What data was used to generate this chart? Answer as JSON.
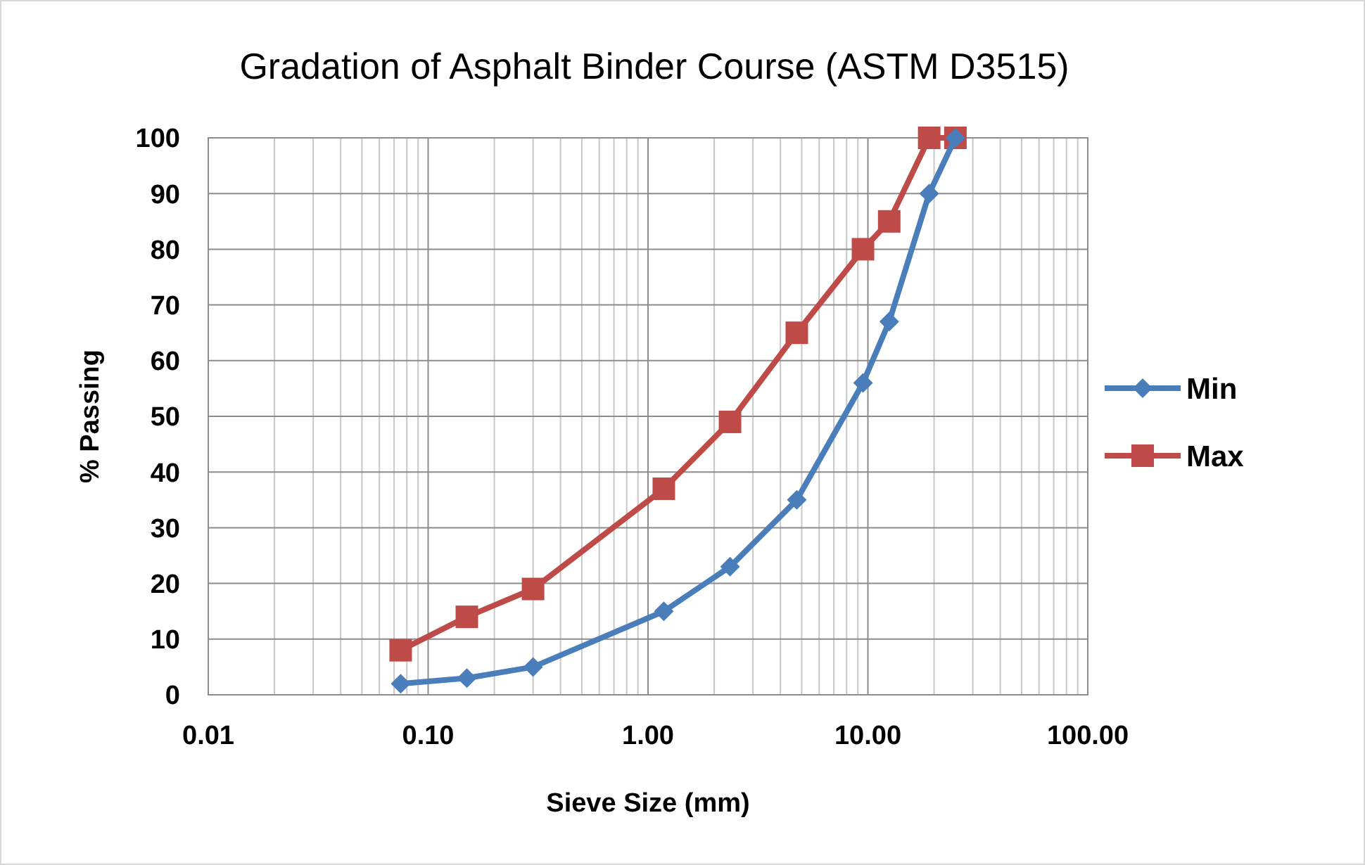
{
  "chart_data": {
    "type": "line",
    "title": "Gradation of Asphalt Binder Course (ASTM D3515)",
    "xlabel": "Sieve Size (mm)",
    "ylabel": "% Passing",
    "x": [
      0.075,
      0.15,
      0.3,
      1.18,
      2.36,
      4.75,
      9.5,
      12.5,
      19,
      25
    ],
    "series": [
      {
        "name": "Min",
        "color": "#4a7ebb",
        "marker": "diamond",
        "values": [
          2,
          3,
          5,
          15,
          23,
          35,
          56,
          67,
          90,
          100
        ]
      },
      {
        "name": "Max",
        "color": "#be4b48",
        "marker": "square",
        "values": [
          8,
          14,
          19,
          37,
          49,
          65,
          80,
          85,
          100,
          100
        ]
      }
    ],
    "log": "x",
    "xlim": [
      0.01,
      100
    ],
    "xticks": [
      {
        "value": 0.01,
        "label": "0.01"
      },
      {
        "value": 0.1,
        "label": "0.10"
      },
      {
        "value": 1,
        "label": "1.00"
      },
      {
        "value": 10,
        "label": "10.00"
      },
      {
        "value": 100,
        "label": "100.00"
      }
    ],
    "ylim": [
      0,
      100
    ],
    "yticks": [
      0,
      10,
      20,
      30,
      40,
      50,
      60,
      70,
      80,
      90,
      100
    ],
    "grid": true,
    "legend": "right",
    "line_style": "solid"
  }
}
